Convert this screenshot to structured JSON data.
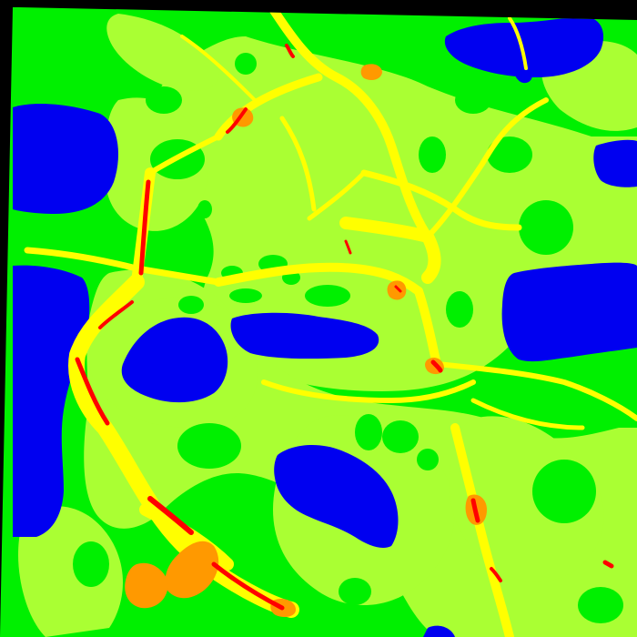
{
  "map": {
    "kind": "classified raster map (land cover / density), rotated slightly",
    "palette": {
      "background": "#000000",
      "water": "#0000f0",
      "vegetation": "#00f000",
      "open_land": "#aaff33",
      "low_density": "#ffff00",
      "medium_density": "#ff9900",
      "high_density": "#ff0000"
    },
    "labels": []
  }
}
